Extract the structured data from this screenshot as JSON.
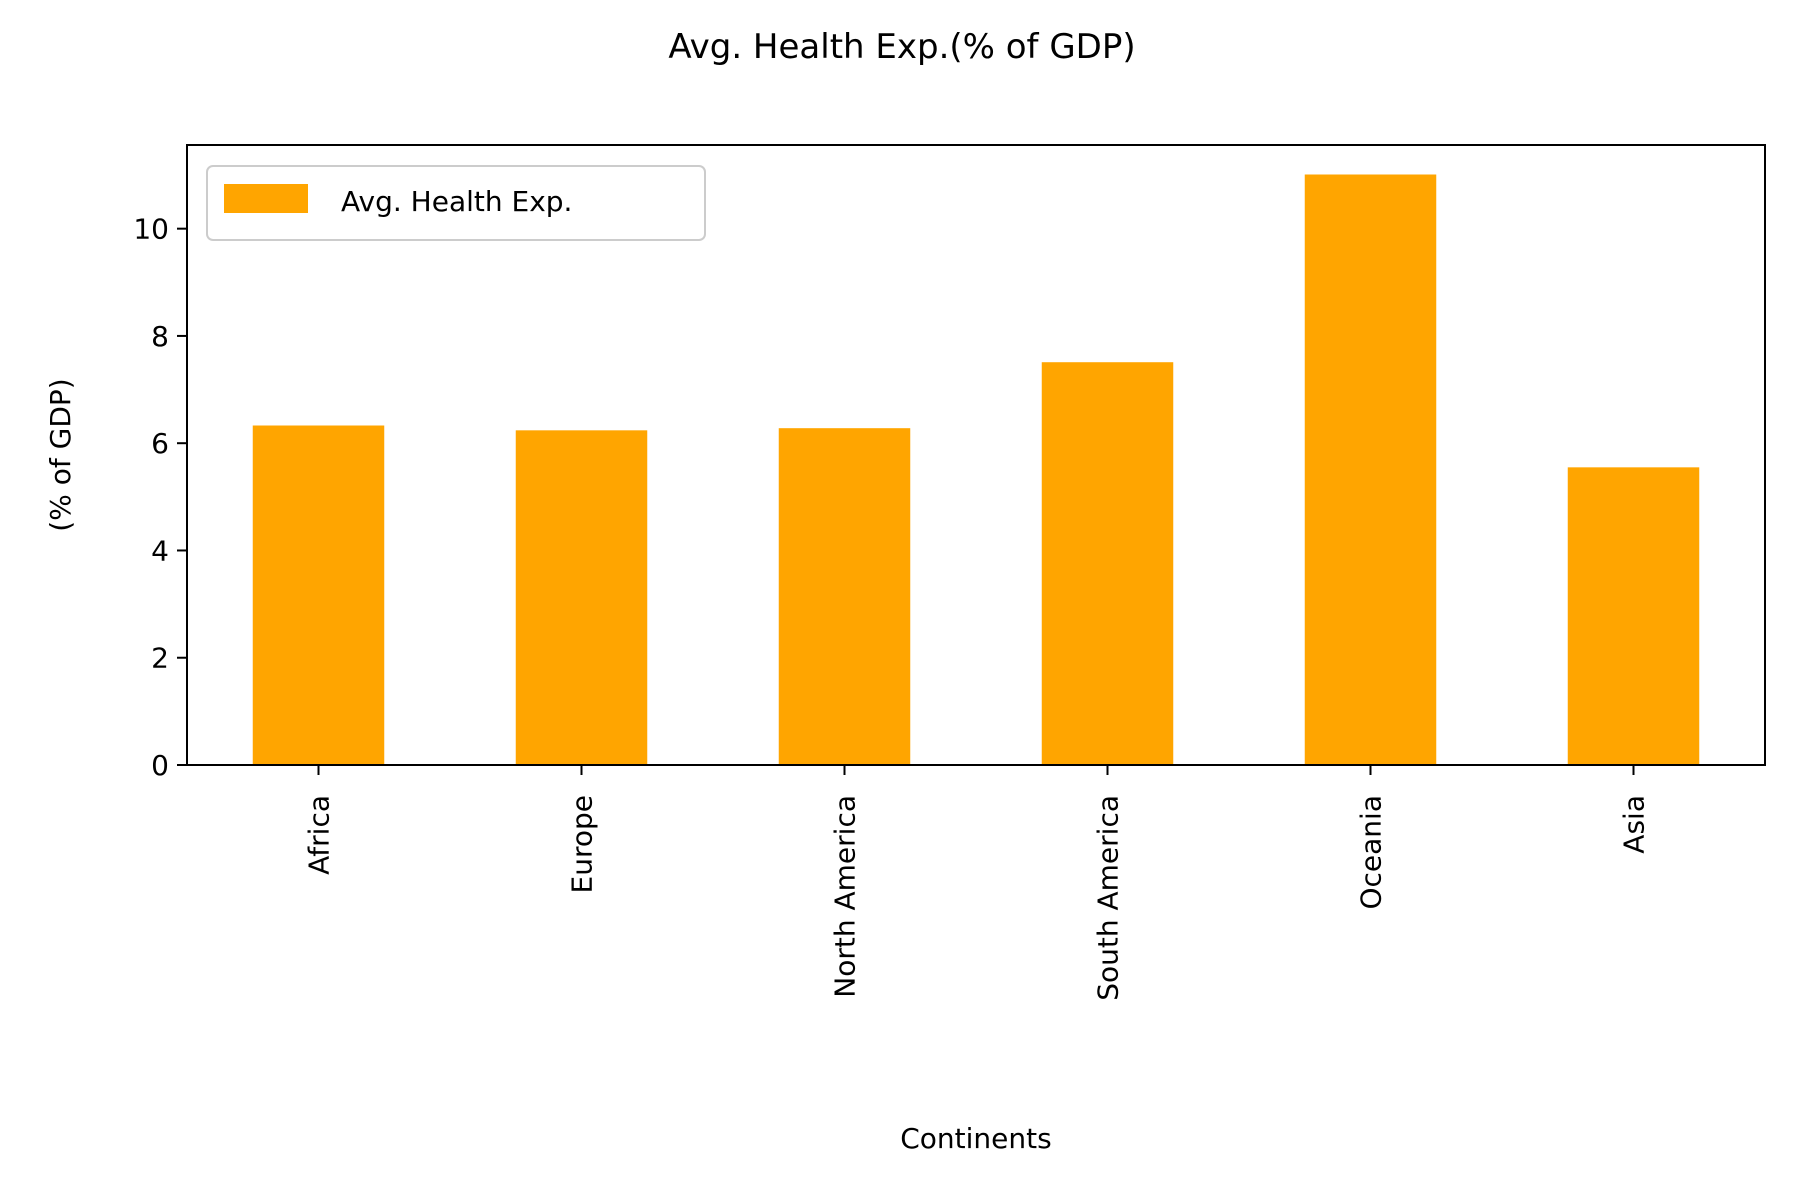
{
  "chart_data": {
    "type": "bar",
    "title": "Avg. Health Exp.(% of GDP)",
    "xlabel": "Continents",
    "ylabel": "(% of GDP)",
    "categories": [
      "Africa",
      "Europe",
      "North America",
      "South America",
      "Oceania",
      "Asia"
    ],
    "series": [
      {
        "name": "Avg. Health Exp.",
        "values": [
          6.33,
          6.24,
          6.28,
          7.51,
          11.01,
          5.55
        ]
      }
    ],
    "ylim": [
      0,
      11.56
    ],
    "yticks": [
      0,
      2,
      4,
      6,
      8,
      10
    ],
    "grid": false,
    "legend_position": "top-left",
    "bar_color": "#FFA500"
  }
}
